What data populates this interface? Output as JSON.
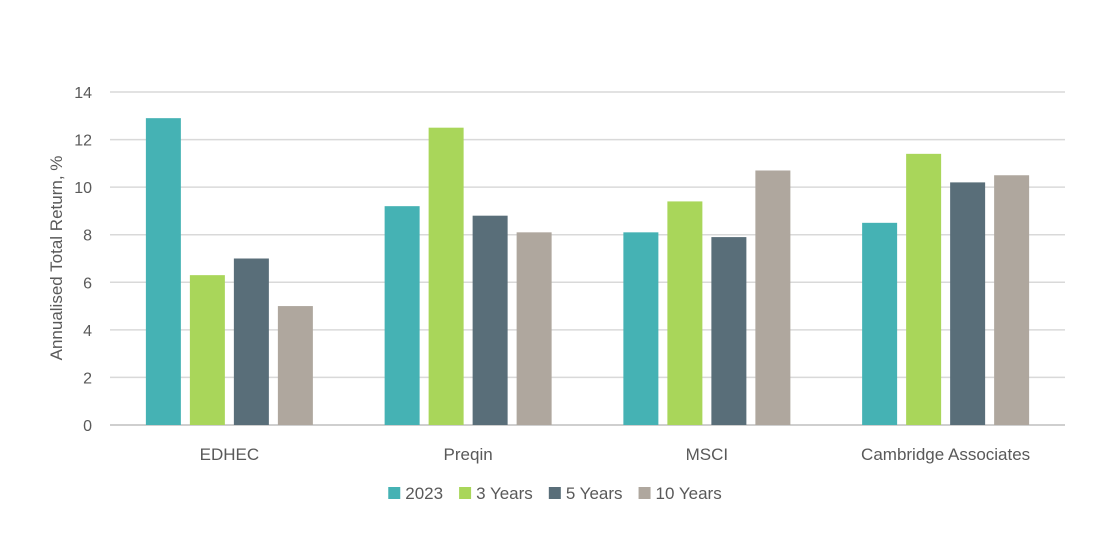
{
  "chart_data": {
    "type": "bar",
    "title": "",
    "xlabel": "",
    "ylabel": "Annualised Total Return, %",
    "ylim": [
      0,
      14
    ],
    "yticks": [
      0,
      2,
      4,
      6,
      8,
      10,
      12,
      14
    ],
    "grid": true,
    "legend_position": "bottom",
    "categories": [
      "EDHEC",
      "Preqin",
      "MSCI",
      "Cambridge Associates"
    ],
    "series": [
      {
        "name": "2023",
        "color": "#45b2b4",
        "values": [
          12.9,
          9.2,
          8.1,
          8.5
        ]
      },
      {
        "name": "3 Years",
        "color": "#a9d65a",
        "values": [
          6.3,
          12.5,
          9.4,
          11.4
        ]
      },
      {
        "name": "5 Years",
        "color": "#596e79",
        "values": [
          7.0,
          8.8,
          7.9,
          10.2
        ]
      },
      {
        "name": "10 Years",
        "color": "#afa79e",
        "values": [
          5.0,
          8.1,
          10.7,
          10.5
        ]
      }
    ]
  }
}
